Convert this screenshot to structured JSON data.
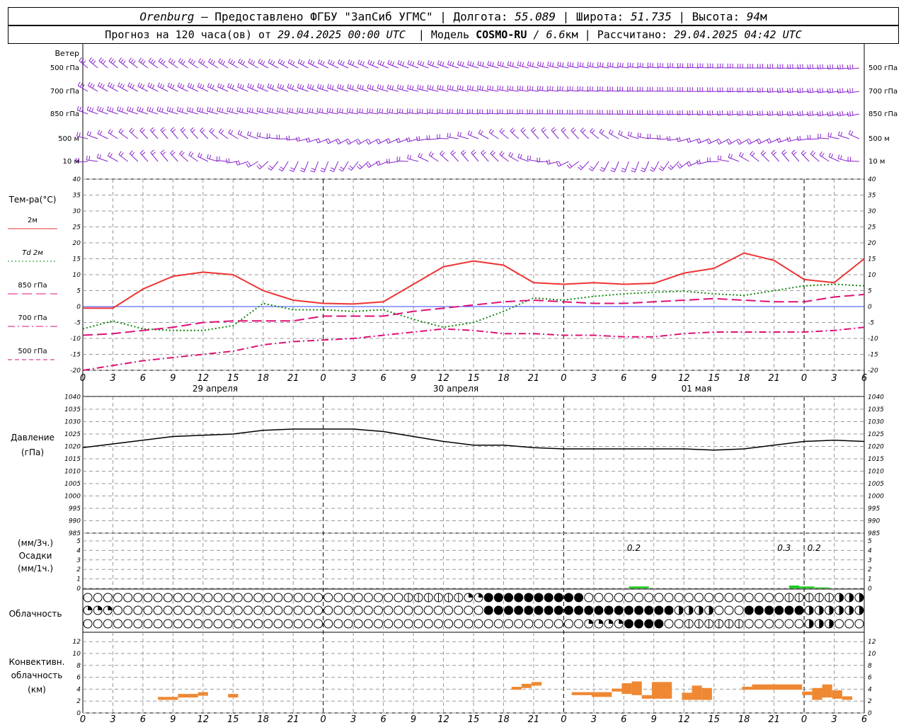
{
  "header": {
    "line1": {
      "city": "Orenburg",
      "provider": " — Предоставлено ФГБУ \"ЗапСиб УГМС\" | Долгота: ",
      "lon": "55.089",
      "lat_label": " | Широта: ",
      "lat": "51.735",
      "alt_label": " | Высота: ",
      "alt": "94",
      "alt_unit": "м"
    },
    "line2": {
      "prefix": "Прогноз на 120 часа(ов) от ",
      "run": "29.04.2025 00:00 UTC",
      "model_label": "  | Модель ",
      "model": "COSMO-RU",
      "res": " / 6.6",
      "res_unit": "км",
      "calc_label": " | Рассчитано: ",
      "calc": "29.04.2025 04:42 UTC"
    }
  },
  "wind_panel": {
    "title": "Ветер",
    "levels": [
      "500 гПа",
      "700 гПа",
      "850 гПа",
      "500 м",
      "10   м"
    ]
  },
  "temp_panel": {
    "title": "Тем-ра(°C)",
    "legend": [
      {
        "label": "2м",
        "color": "#ee3333",
        "dash": "solid"
      },
      {
        "label": "Td  2м",
        "color": "#118811",
        "dash": "dots"
      },
      {
        "label": "850 гПа",
        "color": "#dd1177",
        "dash": "long"
      },
      {
        "label": "700 гПа",
        "color": "#dd1177",
        "dash": "dashdot"
      },
      {
        "label": "500 гПа",
        "color": "#dd1177",
        "dash": "short"
      }
    ]
  },
  "time_axis": {
    "hour_labels": [
      "0",
      "3",
      "6",
      "9",
      "12",
      "15",
      "18",
      "21",
      "0",
      "3",
      "6",
      "9",
      "12",
      "15",
      "18",
      "21",
      "0",
      "3",
      "6",
      "9",
      "12",
      "15",
      "18",
      "21",
      "0",
      "3",
      "6"
    ],
    "dates": [
      "29 апреля",
      "30 апреля",
      "01 мая"
    ]
  },
  "pressure_panel": {
    "title": "Давление",
    "unit": "(гПа)"
  },
  "precip_panel": {
    "line1": "(мм/3ч.)",
    "line2": "Осадки",
    "line3": "(мм/1ч.)",
    "labels": [
      {
        "hour": 55,
        "text": "0.2"
      },
      {
        "hour": 70,
        "text": "0.3"
      },
      {
        "hour": 73,
        "text": "0.2"
      }
    ]
  },
  "cloud_panel": {
    "title": "Облачность"
  },
  "conv_panel": {
    "title1": "Конвективн.",
    "title2": "облачность",
    "unit": "(км)"
  },
  "chart_data": [
    {
      "type": "line",
      "title": "Тем-ра(°C)",
      "ylim": [
        -20,
        40
      ],
      "yticks": [
        -20,
        -15,
        -10,
        -5,
        0,
        5,
        10,
        15,
        20,
        25,
        30,
        35,
        40
      ],
      "x_hours": [
        0,
        3,
        6,
        9,
        12,
        15,
        18,
        21,
        24,
        27,
        30,
        33,
        36,
        39,
        42,
        45,
        48,
        51,
        54,
        57,
        60,
        63,
        66,
        69,
        72,
        75,
        78
      ],
      "series": [
        {
          "name": "2м",
          "color": "#ee3333",
          "values": [
            -0.5,
            -0.5,
            5.5,
            9.5,
            10.8,
            10,
            5,
            2,
            1,
            0.8,
            1.5,
            7,
            12.5,
            14.3,
            13,
            7.5,
            7,
            7.5,
            7,
            7.3,
            10.5,
            12,
            16.8,
            14.5,
            8.5,
            7.5,
            15
          ]
        },
        {
          "name": "Td 2м",
          "color": "#118811",
          "values": [
            -7,
            -4.5,
            -7,
            -7.5,
            -7.5,
            -6,
            1,
            -1,
            -1,
            -1.5,
            -1,
            -4,
            -6.5,
            -5,
            -1.5,
            2.7,
            2,
            3.2,
            4,
            4.5,
            4.8,
            4,
            3.5,
            5,
            6.5,
            7,
            6.5
          ]
        },
        {
          "name": "850 гПа",
          "color": "#dd1177",
          "values": [
            -9,
            -8.5,
            -7.5,
            -6.5,
            -5,
            -4.5,
            -4.5,
            -4.5,
            -3,
            -3,
            -3,
            -1.5,
            -0.5,
            0.5,
            1.5,
            2,
            1.5,
            1,
            1,
            1.5,
            2,
            2.5,
            2,
            1.5,
            1.5,
            3,
            3.8
          ]
        },
        {
          "name": "700 гПа",
          "color": "#dd1177",
          "values": [
            -20,
            -18.5,
            -17,
            -16,
            -15,
            -14,
            -12,
            -11,
            -10.5,
            -10,
            -9,
            -8,
            -7,
            -7.5,
            -8.5,
            -8.5,
            -9,
            -9,
            -9.5,
            -9.5,
            -8.5,
            -8,
            -8,
            -8,
            -8,
            -7.5,
            -6.5
          ]
        }
      ]
    },
    {
      "type": "line",
      "title": "Давление",
      "ylabel": "(гПа)",
      "ylim": [
        985,
        1040
      ],
      "yticks": [
        985,
        990,
        995,
        1000,
        1005,
        1010,
        1015,
        1020,
        1025,
        1030,
        1035,
        1040
      ],
      "x_hours": [
        0,
        3,
        6,
        9,
        12,
        15,
        18,
        21,
        24,
        27,
        30,
        33,
        36,
        39,
        42,
        45,
        48,
        51,
        54,
        57,
        60,
        63,
        66,
        69,
        72,
        75,
        78
      ],
      "series": [
        {
          "name": "Давление",
          "color": "#000000",
          "values": [
            1019.5,
            1021,
            1022.5,
            1024,
            1024.5,
            1025,
            1026.5,
            1027,
            1027,
            1027,
            1026,
            1024,
            1022,
            1020.5,
            1020.5,
            1019.5,
            1019,
            1019,
            1019,
            1019,
            1019,
            1018.5,
            1019,
            1020.5,
            1022,
            1022.5,
            1022
          ]
        }
      ]
    },
    {
      "type": "bar",
      "title": "Осадки",
      "ylim": [
        0,
        5
      ],
      "yticks": [
        0,
        1,
        2,
        3,
        4,
        5
      ],
      "bars": [
        {
          "start": 54.5,
          "end": 56.5,
          "value": 0.2
        },
        {
          "start": 70.5,
          "end": 71.5,
          "value": 0.3
        },
        {
          "start": 71.5,
          "end": 73.0,
          "value": 0.2
        },
        {
          "start": 73.0,
          "end": 74.5,
          "value": 0.1
        }
      ]
    },
    {
      "type": "bar",
      "title": "Конвективн. облачность",
      "ylabel": "(км)",
      "ylim": [
        0,
        14
      ],
      "yticks": [
        0,
        2,
        4,
        6,
        8,
        10,
        12
      ],
      "bars": [
        {
          "start": 7.5,
          "end": 9.5,
          "bottom": 2.2,
          "top": 2.7
        },
        {
          "start": 9.5,
          "end": 11.5,
          "bottom": 2.6,
          "top": 3.2
        },
        {
          "start": 11.5,
          "end": 12.5,
          "bottom": 2.9,
          "top": 3.5
        },
        {
          "start": 14.5,
          "end": 15.5,
          "bottom": 2.6,
          "top": 3.2
        },
        {
          "start": 42.8,
          "end": 43.8,
          "bottom": 3.9,
          "top": 4.4
        },
        {
          "start": 43.8,
          "end": 44.8,
          "bottom": 4.2,
          "top": 4.9
        },
        {
          "start": 44.8,
          "end": 45.8,
          "bottom": 4.6,
          "top": 5.2
        },
        {
          "start": 48.8,
          "end": 50.8,
          "bottom": 3.0,
          "top": 3.5
        },
        {
          "start": 50.8,
          "end": 52.8,
          "bottom": 2.7,
          "top": 3.5
        },
        {
          "start": 52.8,
          "end": 53.8,
          "bottom": 3.6,
          "top": 4.1
        },
        {
          "start": 53.8,
          "end": 54.8,
          "bottom": 3.2,
          "top": 5.0
        },
        {
          "start": 54.8,
          "end": 55.8,
          "bottom": 3.0,
          "top": 5.3
        },
        {
          "start": 55.8,
          "end": 56.8,
          "bottom": 2.4,
          "top": 3.0
        },
        {
          "start": 56.8,
          "end": 58.8,
          "bottom": 2.4,
          "top": 5.2
        },
        {
          "start": 59.8,
          "end": 60.8,
          "bottom": 2.2,
          "top": 3.4
        },
        {
          "start": 60.8,
          "end": 61.8,
          "bottom": 2.2,
          "top": 4.6
        },
        {
          "start": 61.8,
          "end": 62.8,
          "bottom": 2.2,
          "top": 4.2
        },
        {
          "start": 65.8,
          "end": 66.8,
          "bottom": 3.9,
          "top": 4.4
        },
        {
          "start": 66.8,
          "end": 71.8,
          "bottom": 3.9,
          "top": 4.8
        },
        {
          "start": 71.8,
          "end": 72.8,
          "bottom": 3.0,
          "top": 3.6
        },
        {
          "start": 72.8,
          "end": 73.8,
          "bottom": 2.2,
          "top": 4.2
        },
        {
          "start": 73.8,
          "end": 74.8,
          "bottom": 2.6,
          "top": 4.8
        },
        {
          "start": 74.8,
          "end": 75.8,
          "bottom": 2.4,
          "top": 3.8
        },
        {
          "start": 75.8,
          "end": 76.8,
          "bottom": 2.2,
          "top": 2.8
        }
      ]
    }
  ]
}
